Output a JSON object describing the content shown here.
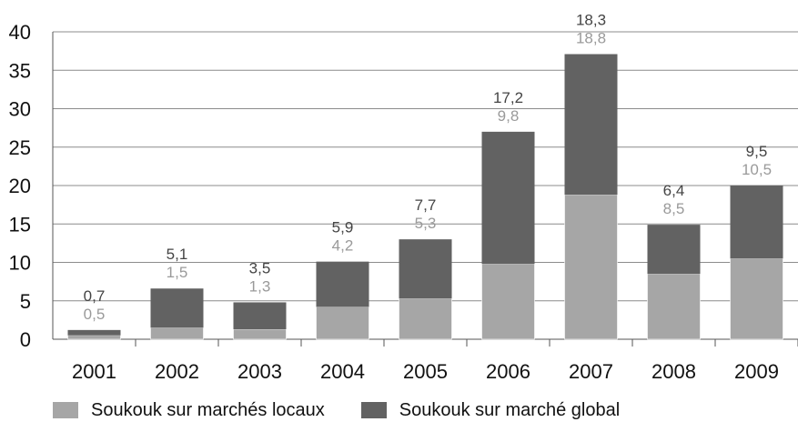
{
  "chart_data": {
    "type": "bar",
    "stacked": true,
    "categories": [
      "2001",
      "2002",
      "2003",
      "2004",
      "2005",
      "2006",
      "2007",
      "2008",
      "2009"
    ],
    "series": [
      {
        "name": "Soukouk sur marchés locaux",
        "color": "#a6a6a6",
        "values": [
          0.5,
          1.5,
          1.3,
          4.2,
          5.3,
          9.8,
          18.8,
          8.5,
          10.5
        ],
        "labels": [
          "0,5",
          "1,5",
          "1,3",
          "4,2",
          "5,3",
          "9,8",
          "18,8",
          "8,5",
          "10,5"
        ]
      },
      {
        "name": "Soukouk sur marché global",
        "color": "#626262",
        "values": [
          0.7,
          5.1,
          3.5,
          5.9,
          7.7,
          17.2,
          18.3,
          6.4,
          9.5
        ],
        "labels": [
          "0,7",
          "5,1",
          "3,5",
          "5,9",
          "7,7",
          "17,2",
          "18,3",
          "6,4",
          "9,5"
        ]
      }
    ],
    "yticks": [
      "0",
      "5",
      "10",
      "15",
      "20",
      "25",
      "30",
      "35",
      "40"
    ],
    "ylim": [
      0,
      40
    ],
    "grid": true,
    "legend_position": "bottom"
  },
  "legend": {
    "local": "Soukouk sur marchés locaux",
    "global": "Soukouk sur marché global"
  }
}
